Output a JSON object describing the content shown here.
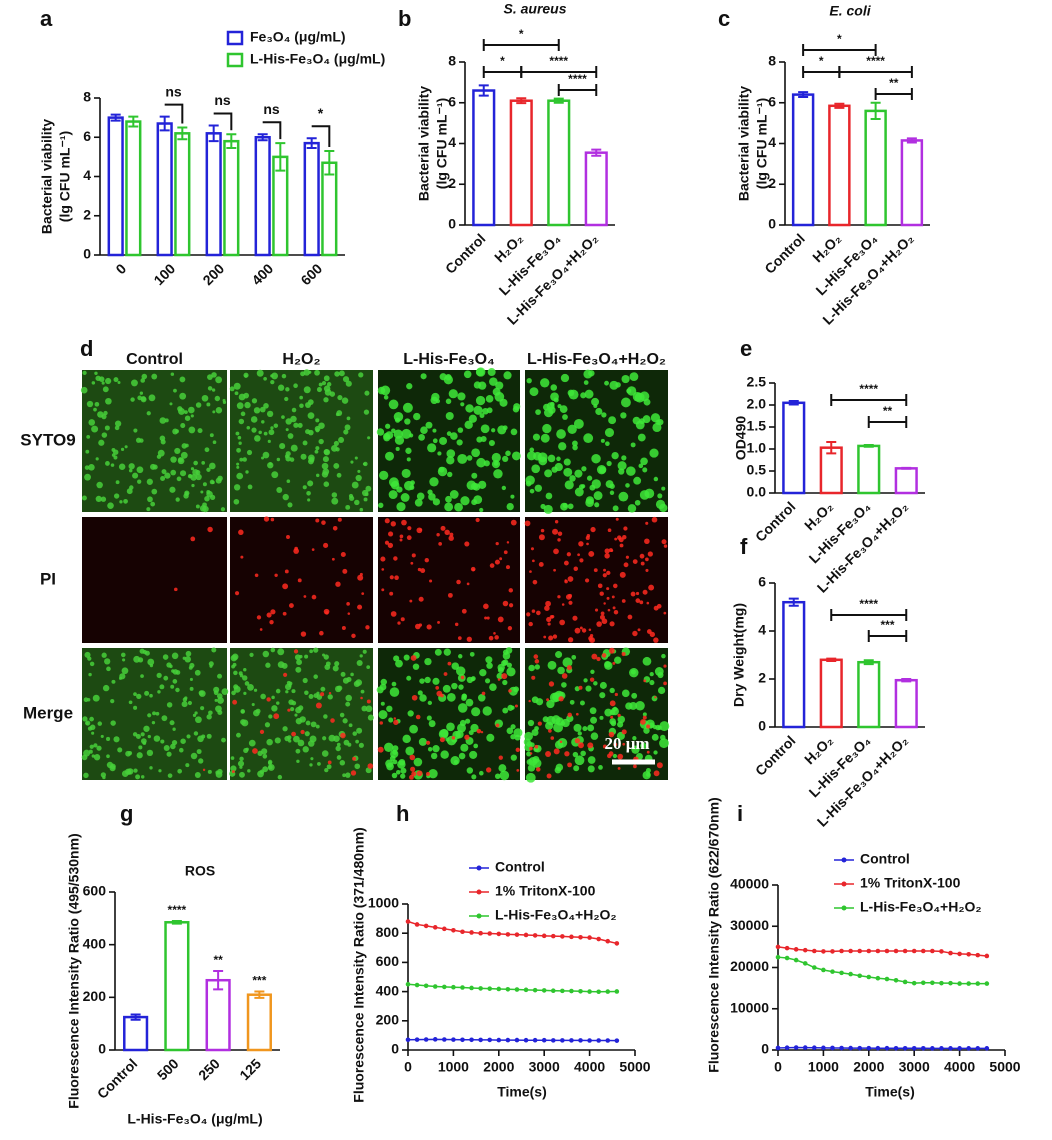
{
  "chart_data": [
    {
      "type": "bar",
      "label": "a",
      "ylabel": [
        "Bacterial viability",
        "(lg CFU mL⁻¹)"
      ],
      "categories": [
        "0",
        "100",
        "200",
        "400",
        "600"
      ],
      "series": [
        {
          "name": "Fe₃O₄ (μg/mL)",
          "color": "#2323d8",
          "values": [
            7.0,
            6.7,
            6.2,
            6.0,
            5.7
          ],
          "errors": [
            0.15,
            0.35,
            0.4,
            0.15,
            0.25
          ]
        },
        {
          "name": "L-His-Fe₃O₄ (μg/mL)",
          "color": "#2fc52f",
          "values": [
            6.8,
            6.2,
            5.8,
            5.0,
            4.7
          ],
          "errors": [
            0.25,
            0.3,
            0.35,
            0.7,
            0.6
          ]
        }
      ],
      "ylim": [
        0,
        8
      ],
      "yticks": [
        0,
        2,
        4,
        6,
        8
      ],
      "annotations": [
        "ns",
        "ns",
        "ns",
        "*"
      ]
    },
    {
      "type": "bar",
      "label": "b",
      "title": "S. aureus",
      "ylabel": [
        "Bacterial viability",
        "(lg CFU mL⁻¹)"
      ],
      "categories": [
        "Control",
        "H₂O₂",
        "L-His-Fe₃O₄",
        "L-His-Fe₃O₄+H₂O₂"
      ],
      "values": [
        6.6,
        6.1,
        6.1,
        3.55
      ],
      "errors": [
        0.25,
        0.12,
        0.1,
        0.15
      ],
      "colors": [
        "#2323d8",
        "#e8262b",
        "#2fc52f",
        "#b12fe0"
      ],
      "ylim": [
        0,
        8
      ],
      "yticks": [
        0,
        2,
        4,
        6,
        8
      ],
      "annotations": [
        "*",
        "*",
        "****",
        "****"
      ]
    },
    {
      "type": "bar",
      "label": "c",
      "title": "E. coli",
      "ylabel": [
        "Bacterial viability",
        "(lg CFU mL⁻¹)"
      ],
      "categories": [
        "Control",
        "H₂O₂",
        "L-His-Fe₃O₄",
        "L-His-Fe₃O₄+H₂O₂"
      ],
      "values": [
        6.4,
        5.85,
        5.6,
        4.15
      ],
      "errors": [
        0.12,
        0.1,
        0.4,
        0.1
      ],
      "colors": [
        "#2323d8",
        "#e8262b",
        "#2fc52f",
        "#b12fe0"
      ],
      "ylim": [
        0,
        8
      ],
      "yticks": [
        0,
        2,
        4,
        6,
        8
      ],
      "annotations": [
        "*",
        "*",
        "****",
        "**"
      ]
    },
    {
      "type": "bar",
      "label": "e",
      "ylabel": "OD490",
      "categories": [
        "Control",
        "H₂O₂",
        "L-His-Fe₃O₄",
        "L-His-Fe₃O₄+H₂O₂"
      ],
      "values": [
        2.05,
        1.03,
        1.07,
        0.56
      ],
      "errors": [
        0.04,
        0.13,
        0.02,
        0.01
      ],
      "colors": [
        "#2323d8",
        "#e8262b",
        "#2fc52f",
        "#b12fe0"
      ],
      "ylim": [
        0,
        2.5
      ],
      "yticks": [
        {
          "value": 0,
          "label": "0.0"
        },
        0.5,
        {
          "value": 1,
          "label": "1.0"
        },
        1.5,
        {
          "value": 2,
          "label": "2.0"
        },
        2.5
      ],
      "annotations": [
        "****",
        "**"
      ]
    },
    {
      "type": "bar",
      "label": "f",
      "ylabel": "Dry Weight(mg)",
      "categories": [
        "Control",
        "H₂O₂",
        "L-His-Fe₃O₄",
        "L-His-Fe₃O₄+H₂O₂"
      ],
      "values": [
        5.2,
        2.8,
        2.7,
        1.95
      ],
      "errors": [
        0.15,
        0.05,
        0.08,
        0.05
      ],
      "colors": [
        "#2323d8",
        "#e8262b",
        "#2fc52f",
        "#b12fe0"
      ],
      "ylim": [
        0,
        6
      ],
      "yticks": [
        0,
        2,
        4,
        6
      ],
      "annotations": [
        "****",
        "***"
      ]
    },
    {
      "type": "bar",
      "label": "g",
      "title": "ROS",
      "ylabel": "Fluorescence Intensity Ratio (495/530nm)",
      "xlabel": "L-His-Fe₃O₄ (μg/mL)",
      "categories": [
        "Control",
        "500",
        "250",
        "125"
      ],
      "values": [
        125,
        485,
        265,
        210
      ],
      "errors": [
        10,
        5,
        35,
        12
      ],
      "colors": [
        "#2323d8",
        "#2fc52f",
        "#b12fe0",
        "#f0961e"
      ],
      "ylim": [
        0,
        600
      ],
      "yticks": [
        0,
        200,
        400,
        600
      ],
      "annotations": [
        "****",
        "**",
        "***"
      ]
    },
    {
      "type": "line",
      "label": "h",
      "ylabel": "Fluorescence Intensity Ratio (371/480nm)",
      "xlabel": "Time(s)",
      "x": [
        0,
        200,
        400,
        600,
        800,
        1000,
        1200,
        1400,
        1600,
        1800,
        2000,
        2200,
        2400,
        2600,
        2800,
        3000,
        3200,
        3400,
        3600,
        3800,
        4000,
        4200,
        4400,
        4600
      ],
      "series": [
        {
          "name": "Control",
          "color": "#2323d8",
          "values": [
            70,
            71,
            72,
            73,
            72,
            71,
            70,
            70,
            69,
            69,
            68,
            68,
            68,
            67,
            67,
            67,
            66,
            66,
            66,
            66,
            65,
            65,
            65,
            64
          ]
        },
        {
          "name": "1% TritonX-100",
          "color": "#e8262b",
          "values": [
            880,
            860,
            850,
            840,
            830,
            820,
            810,
            805,
            800,
            798,
            795,
            792,
            790,
            788,
            785,
            782,
            780,
            778,
            775,
            772,
            770,
            760,
            745,
            730
          ]
        },
        {
          "name": "L-His-Fe₃O₄+H₂O₂",
          "color": "#2fc52f",
          "values": [
            450,
            445,
            440,
            435,
            432,
            430,
            428,
            425,
            422,
            420,
            418,
            416,
            414,
            412,
            410,
            408,
            406,
            405,
            404,
            402,
            400,
            399,
            400,
            401
          ]
        }
      ],
      "xlim": [
        0,
        5000
      ],
      "xticks": [
        0,
        1000,
        2000,
        3000,
        4000,
        5000
      ],
      "ylim": [
        0,
        1000
      ],
      "yticks": [
        0,
        200,
        400,
        600,
        800,
        1000
      ]
    },
    {
      "type": "line",
      "label": "i",
      "ylabel": "Fluorescence Intensity Ratio (622/670nm)",
      "xlabel": "Time(s)",
      "x": [
        0,
        200,
        400,
        600,
        800,
        1000,
        1200,
        1400,
        1600,
        1800,
        2000,
        2200,
        2400,
        2600,
        2800,
        3000,
        3200,
        3400,
        3600,
        3800,
        4000,
        4200,
        4400,
        4600
      ],
      "series": [
        {
          "name": "Control",
          "color": "#2323d8",
          "values": [
            500,
            550,
            600,
            580,
            560,
            520,
            500,
            480,
            460,
            450,
            440,
            430,
            430,
            420,
            420,
            410,
            410,
            400,
            400,
            400,
            400,
            400,
            400,
            400
          ]
        },
        {
          "name": "1% TritonX-100",
          "color": "#e8262b",
          "values": [
            25000,
            24700,
            24400,
            24200,
            24000,
            23900,
            23900,
            24000,
            24000,
            24000,
            24000,
            24000,
            24000,
            24000,
            24000,
            24000,
            24000,
            24000,
            23900,
            23500,
            23300,
            23200,
            23000,
            22800
          ]
        },
        {
          "name": "L-His-Fe₃O₄+H₂O₂",
          "color": "#2fc52f",
          "values": [
            22500,
            22300,
            21800,
            21000,
            20000,
            19400,
            19000,
            18700,
            18400,
            18000,
            17700,
            17400,
            17200,
            16900,
            16500,
            16200,
            16300,
            16300,
            16200,
            16200,
            16100,
            16100,
            16100,
            16100
          ]
        }
      ],
      "xlim": [
        0,
        5000
      ],
      "xticks": [
        0,
        1000,
        2000,
        3000,
        4000,
        5000
      ],
      "ylim": [
        0,
        40000
      ],
      "yticks": [
        0,
        10000,
        20000,
        30000,
        40000
      ]
    }
  ],
  "image_panel": {
    "label": "d",
    "columns": [
      "Control",
      "H₂O₂",
      "L-His-Fe₃O₄",
      "L-His-Fe₃O₄+H₂O₂"
    ],
    "rows": [
      "SYTO9",
      "PI",
      "Merge"
    ],
    "scale_bar": "20 μm"
  }
}
